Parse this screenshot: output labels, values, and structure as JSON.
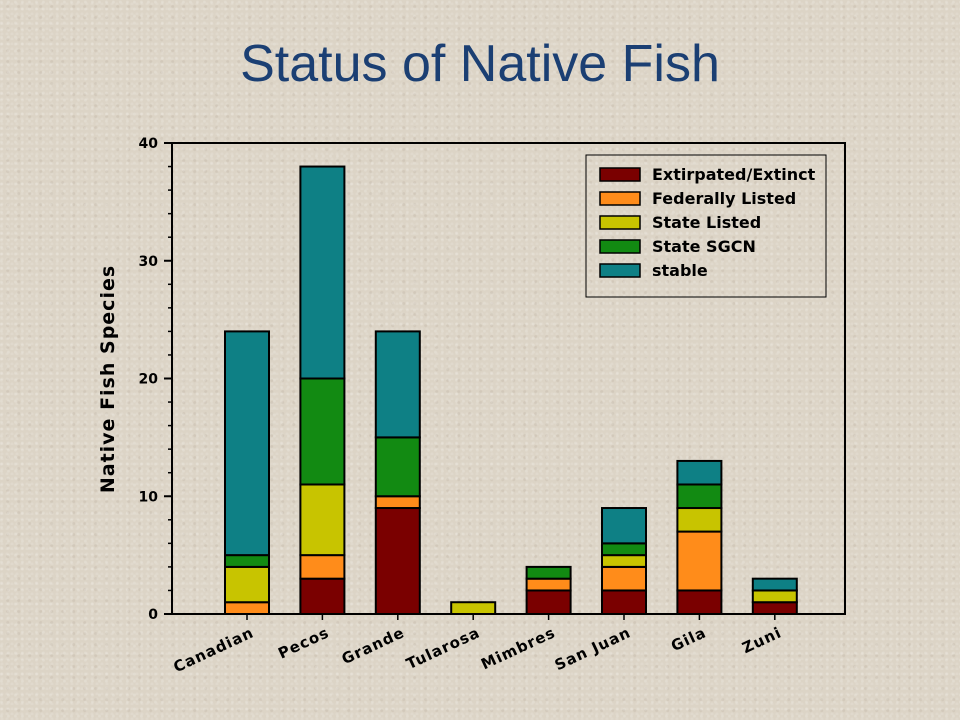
{
  "chart_data": {
    "type": "bar",
    "stacked": true,
    "title": "Status of Native Fish",
    "xlabel": "",
    "ylabel": "Native Fish Species",
    "ylim": [
      0,
      40
    ],
    "yticks": [
      "0",
      "10",
      "20",
      "30",
      "40"
    ],
    "grid": false,
    "legend_position": "top-right",
    "categories": [
      "Canadian",
      "Pecos",
      "Grande",
      "Tularosa",
      "Mimbres",
      "San Juan",
      "Gila",
      "Zuni"
    ],
    "series": [
      {
        "name": "Extirpated/Extinct",
        "color": "#7a0000",
        "values": [
          0,
          3,
          9,
          0,
          2,
          2,
          2,
          1
        ]
      },
      {
        "name": "Federally Listed",
        "color": "#ff8c1a",
        "values": [
          1,
          2,
          1,
          0,
          1,
          2,
          5,
          0
        ]
      },
      {
        "name": "State Listed",
        "color": "#c8c400",
        "values": [
          3,
          6,
          0,
          1,
          0,
          1,
          2,
          1
        ]
      },
      {
        "name": "State SGCN",
        "color": "#128a12",
        "values": [
          1,
          9,
          5,
          0,
          1,
          1,
          2,
          0
        ]
      },
      {
        "name": "stable",
        "color": "#0e8085",
        "values": [
          19,
          18,
          9,
          0,
          0,
          3,
          2,
          1
        ]
      }
    ]
  }
}
